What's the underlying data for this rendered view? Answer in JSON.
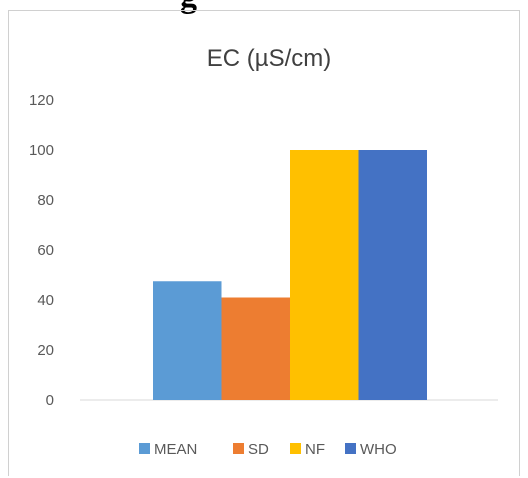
{
  "page_heading_fragment": "g",
  "chart_data": {
    "type": "bar",
    "title": "EC (µS/cm)",
    "xlabel": "",
    "ylabel": "",
    "ylim": [
      0,
      120
    ],
    "yticks": [
      0,
      20,
      40,
      60,
      80,
      100,
      120
    ],
    "grid": false,
    "legend_position": "bottom",
    "series": [
      {
        "name": "MEAN",
        "values": [
          47.5
        ],
        "color": "#5b9bd5"
      },
      {
        "name": "SD",
        "values": [
          41
        ],
        "color": "#ed7d31"
      },
      {
        "name": "NF",
        "values": [
          100
        ],
        "color": "#ffc000"
      },
      {
        "name": "WHO",
        "values": [
          100
        ],
        "color": "#4472c4"
      }
    ]
  }
}
